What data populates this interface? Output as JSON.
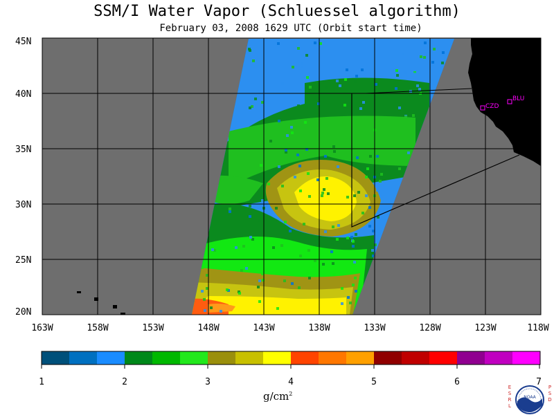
{
  "title": "SSM/I Water Vapor (Schluessel algorithm)",
  "subtitle": "February 03, 2008  1629 UTC  (Orbit start time)",
  "colors": {
    "ocean_no_data": "#6e6e6e",
    "land": "#000000",
    "station": "#ff00ff",
    "swath_palette": [
      "#0072d8",
      "#2c8ff0",
      "#0b8a1e",
      "#1fbf1f",
      "#12e812",
      "#a09414",
      "#c7c410",
      "#fff200",
      "#ff5c10",
      "#ff9a1a"
    ]
  },
  "map": {
    "lat_labels": [
      "45N",
      "40N",
      "35N",
      "30N",
      "25N",
      "20N"
    ],
    "lon_labels": [
      "163W",
      "158W",
      "153W",
      "148W",
      "143W",
      "138W",
      "133W",
      "128W",
      "123W",
      "118W"
    ],
    "stations": [
      {
        "name": "CZD",
        "icon": "station-square-icon"
      },
      {
        "name": "BLU",
        "icon": "station-square-icon"
      }
    ]
  },
  "colorbar": {
    "ticks": [
      "1",
      "2",
      "3",
      "4",
      "5",
      "6",
      "7"
    ],
    "colors": [
      "#00507a",
      "#0070c0",
      "#1a8cff",
      "#00881a",
      "#00b800",
      "#22e81c",
      "#9a8f0c",
      "#c8c000",
      "#ffff00",
      "#ff4400",
      "#ff7700",
      "#ffa000",
      "#900000",
      "#c00000",
      "#ff0000",
      "#900090",
      "#c000c0",
      "#ff00ff"
    ],
    "unit": "g/cm",
    "unit_sup": "2"
  },
  "logo": {
    "left_letters": [
      "E",
      "S",
      "R",
      "L"
    ],
    "right_letters": [
      "P",
      "S",
      "D"
    ],
    "name": "NOAA"
  }
}
